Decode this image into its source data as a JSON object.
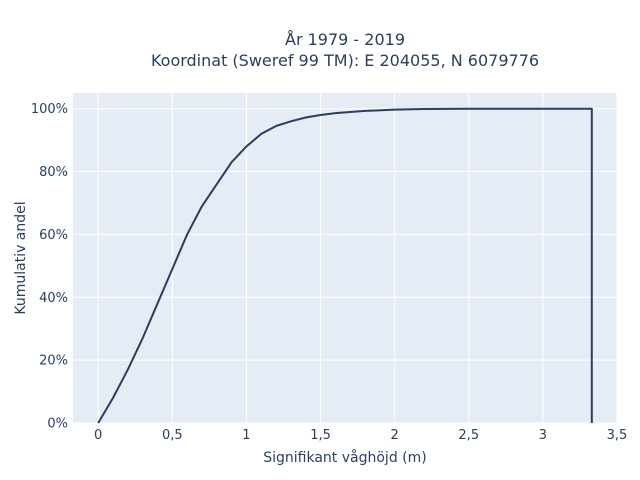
{
  "chart_data": {
    "type": "line",
    "title_line1": "År 1979 - 2019",
    "title_line2": "Koordinat (Sweref 99 TM): E 204055, N 6079776",
    "xlabel": "Signifikant våghöjd (m)",
    "ylabel": "Kumulativ andel",
    "xlim": [
      -0.17,
      3.5
    ],
    "ylim": [
      0,
      1.05
    ],
    "xticks": [
      0,
      0.5,
      1,
      1.5,
      2,
      2.5,
      3,
      3.5
    ],
    "xtick_labels": [
      "0",
      "0,5",
      "1",
      "1,5",
      "2",
      "2,5",
      "3",
      "3,5"
    ],
    "yticks": [
      0,
      0.2,
      0.4,
      0.6,
      0.8,
      1.0
    ],
    "ytick_labels": [
      "0%",
      "20%",
      "40%",
      "60%",
      "80%",
      "100%"
    ],
    "grid": true,
    "colors": {
      "plot_bg": "#e5ecf6",
      "grid": "#ffffff",
      "line": "#2a3f5f",
      "text": "#2a3f5f"
    },
    "series": [
      {
        "x": [
          0.0,
          0.1,
          0.2,
          0.3,
          0.4,
          0.5,
          0.6,
          0.7,
          0.8,
          0.9,
          1.0,
          1.1,
          1.2,
          1.3,
          1.4,
          1.5,
          1.6,
          1.8,
          2.0,
          2.2,
          2.5,
          3.0,
          3.33,
          3.33
        ],
        "y": [
          0.0,
          0.08,
          0.17,
          0.27,
          0.38,
          0.49,
          0.6,
          0.69,
          0.76,
          0.83,
          0.88,
          0.92,
          0.945,
          0.96,
          0.972,
          0.98,
          0.986,
          0.993,
          0.997,
          0.999,
          1.0,
          1.0,
          1.0,
          0.0
        ]
      }
    ]
  }
}
